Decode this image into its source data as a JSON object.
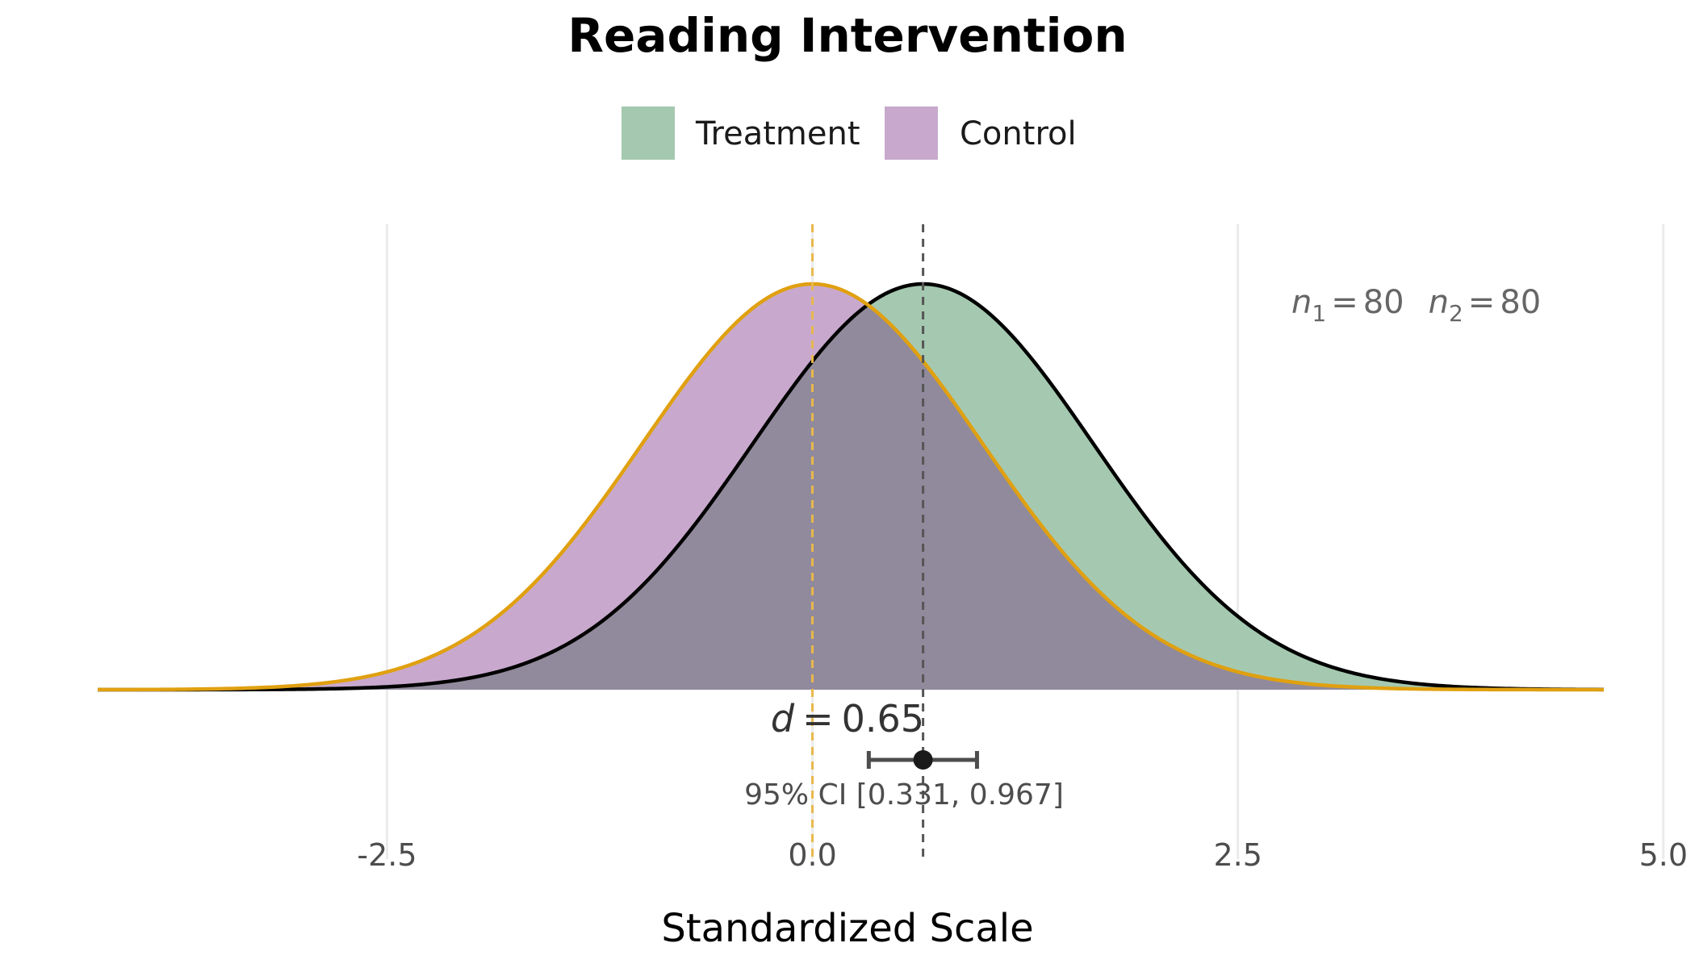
{
  "chart_data": {
    "type": "area",
    "title": "Reading Intervention",
    "xlabel": "Standardized Scale",
    "ylabel": "",
    "xlim": [
      -4.2,
      4.65
    ],
    "xticks": [
      -2.5,
      0.0,
      2.5,
      5.0
    ],
    "xtick_labels": [
      "-2.5",
      "0.0",
      "2.5",
      "5.0"
    ],
    "grid": "vertical major gridlines",
    "legend_position": "top",
    "series": [
      {
        "name": "Treatment",
        "distribution": "normal",
        "mean": 0.65,
        "sd": 1.0,
        "fill": "#a5c9b0",
        "line": "#000000"
      },
      {
        "name": "Control",
        "distribution": "normal",
        "mean": 0.0,
        "sd": 1.0,
        "fill": "#c8a9cd",
        "line": "#e0a010"
      }
    ],
    "overlap_color": "#918a9c",
    "reference_lines": [
      {
        "x": 0.0,
        "color": "#e8b84a",
        "style": "dashed"
      },
      {
        "x": 0.65,
        "color": "#555555",
        "style": "dashed"
      }
    ],
    "effect_size": {
      "label_prefix": "d",
      "label_equals": "=",
      "value_text": "0.65",
      "value": 0.65,
      "ci_low": 0.331,
      "ci_high": 0.967,
      "ci_text": "95% CI [0.331, 0.967]"
    },
    "annotations": {
      "n1_symbol": "n",
      "n1_sub": "1",
      "n1_eq": "=",
      "n1_value": "80",
      "n2_symbol": "n",
      "n2_sub": "2",
      "n2_eq": "=",
      "n2_value": "80"
    }
  }
}
